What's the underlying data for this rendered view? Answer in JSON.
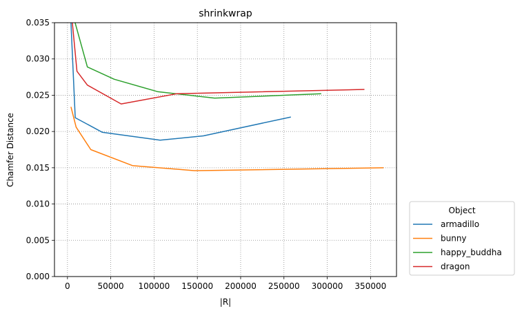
{
  "chart_data": {
    "type": "line",
    "title": "shrinkwrap",
    "xlabel": "|R|",
    "ylabel": "Chamfer Distance",
    "xlim": [
      -15000,
      380000
    ],
    "ylim": [
      0,
      0.035
    ],
    "xticks": [
      0,
      50000,
      100000,
      150000,
      200000,
      250000,
      300000,
      350000
    ],
    "xtick_labels": [
      "0",
      "50000",
      "100000",
      "150000",
      "200000",
      "250000",
      "300000",
      "350000"
    ],
    "yticks": [
      0,
      0.005,
      0.01,
      0.015,
      0.02,
      0.025,
      0.03,
      0.035
    ],
    "ytick_labels": [
      "0.000",
      "0.005",
      "0.010",
      "0.015",
      "0.020",
      "0.025",
      "0.030",
      "0.035"
    ],
    "grid": true,
    "legend": {
      "title": "Object",
      "placement": "outside-lower-right"
    },
    "series": [
      {
        "name": "armadillo",
        "color": "#1f77b4",
        "x": [
          3500,
          9000,
          40000,
          107000,
          157000,
          258000
        ],
        "y": [
          0.0365,
          0.0219,
          0.0199,
          0.0188,
          0.0194,
          0.022
        ]
      },
      {
        "name": "bunny",
        "color": "#ff7f0e",
        "x": [
          4000,
          10000,
          27000,
          75000,
          147000,
          365000
        ],
        "y": [
          0.0234,
          0.0206,
          0.0175,
          0.0153,
          0.0146,
          0.015
        ]
      },
      {
        "name": "happy_buddha",
        "color": "#2ca02c",
        "x": [
          3000,
          23000,
          54000,
          104000,
          170000,
          293000
        ],
        "y": [
          0.0375,
          0.0289,
          0.0272,
          0.0255,
          0.0246,
          0.0252
        ]
      },
      {
        "name": "dragon",
        "color": "#d62728",
        "x": [
          4000,
          11000,
          23000,
          62000,
          126000,
          343000
        ],
        "y": [
          0.037,
          0.0283,
          0.0264,
          0.0238,
          0.0252,
          0.0258
        ]
      }
    ]
  }
}
